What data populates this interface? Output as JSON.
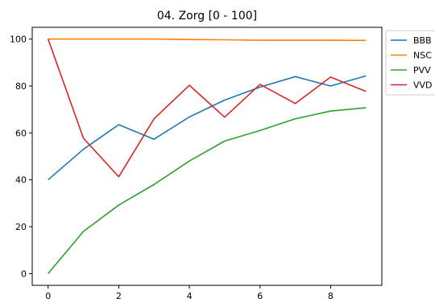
{
  "chart_data": {
    "type": "line",
    "title": "04. Zorg [0 - 100]",
    "xlabel": "",
    "ylabel": "",
    "xlim": [
      -0.45,
      9.45
    ],
    "ylim": [
      -5,
      105
    ],
    "xticks": [
      0,
      2,
      4,
      6,
      8
    ],
    "yticks": [
      0,
      20,
      40,
      60,
      80,
      100
    ],
    "grid": false,
    "legend_position": "upper right, outside plot",
    "x": [
      0,
      1,
      2,
      3,
      4,
      5,
      6,
      7,
      8,
      9
    ],
    "series": [
      {
        "name": "BBB",
        "color": "#1f77b4",
        "values": [
          40,
          53,
          63.5,
          57.3,
          66.8,
          74,
          79.5,
          84,
          80,
          84.3
        ]
      },
      {
        "name": "NSC",
        "color": "#ff7f0e",
        "values": [
          100,
          100,
          100,
          100,
          99.8,
          99.7,
          99.5,
          99.5,
          99.5,
          99.4
        ]
      },
      {
        "name": "PVV",
        "color": "#2ca02c",
        "values": [
          0,
          18,
          29.2,
          38,
          48,
          56.5,
          61,
          66,
          69.3,
          70.7
        ]
      },
      {
        "name": "VVD",
        "color": "#d62728",
        "values": [
          100,
          57.7,
          41.3,
          66,
          80.3,
          66.7,
          80.7,
          72.5,
          83.8,
          77.7
        ]
      }
    ]
  }
}
